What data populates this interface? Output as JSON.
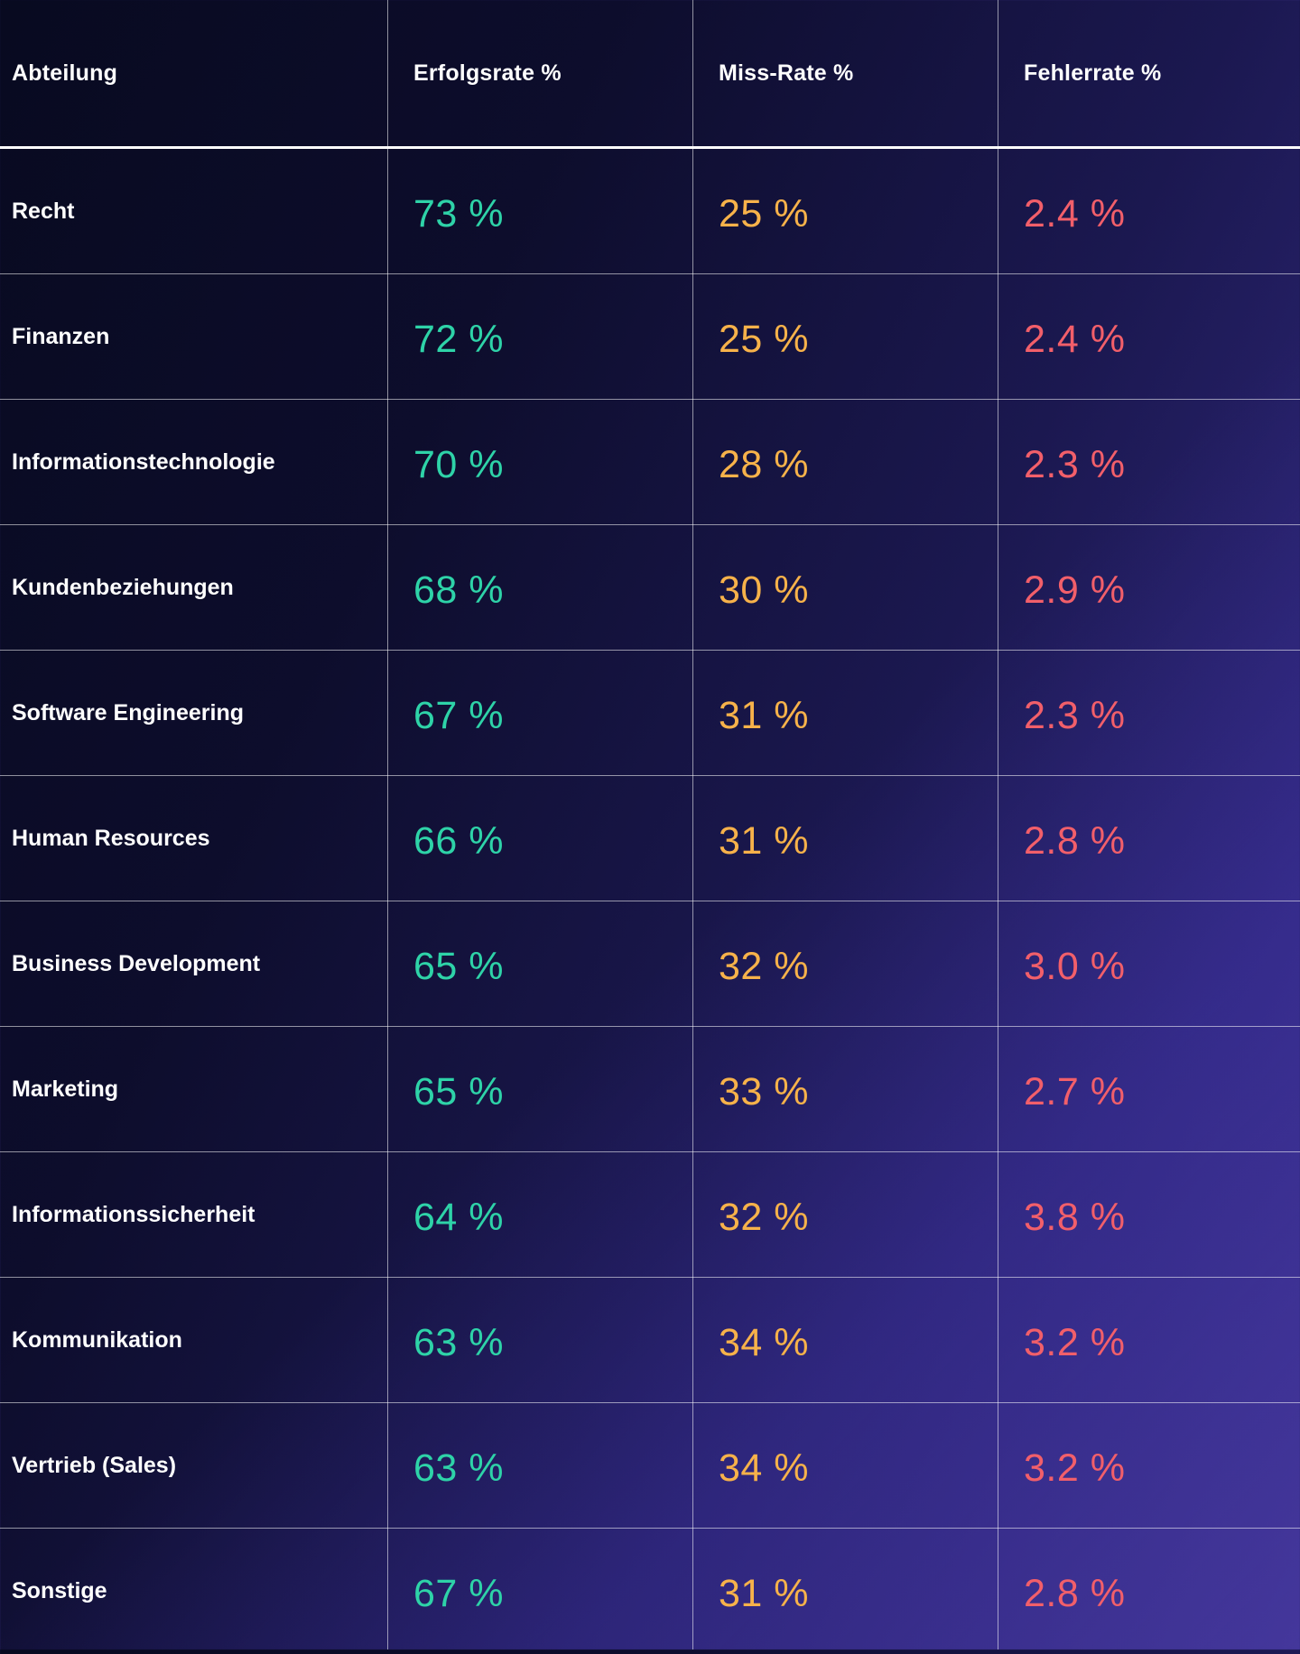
{
  "colors": {
    "success": "#2ed3a8",
    "miss": "#f7b24a",
    "error": "#f25f6a",
    "text": "#ffffff"
  },
  "table": {
    "headers": [
      "Abteilung",
      "Erfolgsrate %",
      "Miss-Rate %",
      "Fehlerrate %"
    ],
    "rows": [
      {
        "department": "Recht",
        "success": "73 %",
        "miss": "25 %",
        "error": "2.4 %"
      },
      {
        "department": "Finanzen",
        "success": "72 %",
        "miss": "25 %",
        "error": "2.4 %"
      },
      {
        "department": "Informationstechnologie",
        "success": "70 %",
        "miss": "28 %",
        "error": "2.3 %"
      },
      {
        "department": "Kundenbeziehungen",
        "success": "68 %",
        "miss": "30 %",
        "error": "2.9 %"
      },
      {
        "department": "Software Engineering",
        "success": "67 %",
        "miss": "31 %",
        "error": "2.3 %"
      },
      {
        "department": "Human Resources",
        "success": "66 %",
        "miss": "31 %",
        "error": "2.8  %"
      },
      {
        "department": "Business Development",
        "success": "65 %",
        "miss": "32 %",
        "error": "3.0 %"
      },
      {
        "department": "Marketing",
        "success": "65 %",
        "miss": "33 %",
        "error": "2.7 %"
      },
      {
        "department": "Informationssicherheit",
        "success": "64 %",
        "miss": "32 %",
        "error": "3.8 %"
      },
      {
        "department": "Kommunikation",
        "success": "63 %",
        "miss": "34 %",
        "error": "3.2 %"
      },
      {
        "department": "Vertrieb (Sales)",
        "success": "63 %",
        "miss": "34 %",
        "error": "3.2 %"
      },
      {
        "department": "Sonstige",
        "success": "67 %",
        "miss": "31 %",
        "error": "2.8 %"
      }
    ]
  }
}
